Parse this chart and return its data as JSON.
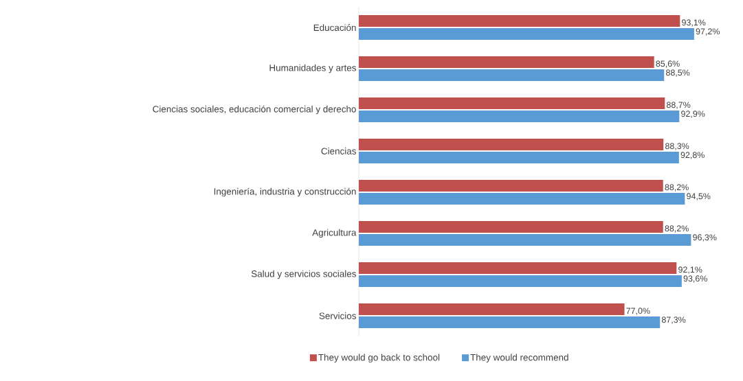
{
  "chart_data": {
    "type": "bar",
    "orientation": "horizontal",
    "legend": "bottom",
    "categories": [
      "Educación",
      "Humanidades y artes",
      "Ciencias sociales, educación comercial y derecho",
      "Ciencias",
      "Ingeniería, industria y construcción",
      "Agricultura",
      "Salud y servicios sociales",
      "Servicios"
    ],
    "series": [
      {
        "name": "They would go back to school",
        "color": "#c0504d",
        "values": [
          93.1,
          85.6,
          88.7,
          88.3,
          88.2,
          88.2,
          92.1,
          77.0
        ],
        "value_labels": [
          "93,1%",
          "85,6%",
          "88,7%",
          "88,3%",
          "88,2%",
          "88,2%",
          "92,1%",
          "77,0%"
        ]
      },
      {
        "name": "They would recommend",
        "color": "#5b9bd5",
        "values": [
          97.2,
          88.5,
          92.9,
          92.8,
          94.5,
          96.3,
          93.6,
          87.3
        ],
        "value_labels": [
          "97,2%",
          "88,5%",
          "92,9%",
          "92,8%",
          "94,5%",
          "96,3%",
          "93,6%",
          "87,3%"
        ]
      }
    ]
  }
}
